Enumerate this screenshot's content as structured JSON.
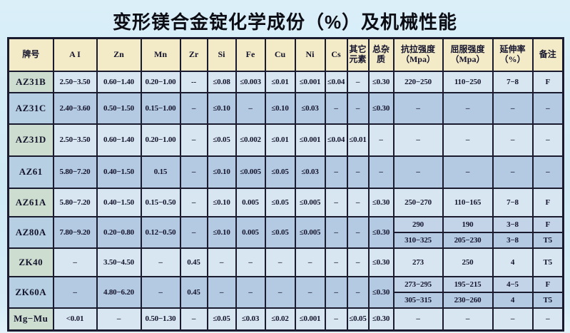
{
  "title": "变形镁合金锭化学成份（%）及机械性能",
  "colors": {
    "page-bg": "#cfe9f5",
    "header-bg": "#f3eac8",
    "row-light": "#d7e6f1",
    "row-dark": "#b4cae2",
    "grade-green": "#cdddcf",
    "grade-blue": "#b7cfe2",
    "subrow-light": "#c3d4e8",
    "border": "#1b1b30",
    "text": "#14142c"
  },
  "table": {
    "headers": [
      "牌号",
      "A I",
      "Zn",
      "Mn",
      "Zr",
      "Si",
      "Fe",
      "Cu",
      "Ni",
      "Cs",
      "其它\n元素",
      "总杂质",
      "抗拉强度\n（Mpa）",
      "屈服强度\n（Mpa）",
      "延伸率\n（%）",
      "备注"
    ],
    "rows": [
      {
        "grade": "AZ31B",
        "cells": [
          "2.50−3.50",
          "0.60−1.40",
          "0.20−1.00",
          "--",
          "≤0.08",
          "≤0.003",
          "≤0.01",
          "≤0.001",
          "≤0.04",
          "–",
          "≤0.30"
        ],
        "mech": [
          [
            "220−250",
            "110−250",
            "7−8",
            "F"
          ]
        ]
      },
      {
        "grade": "AZ31C",
        "cells": [
          "2.40−3.60",
          "0.50−1.50",
          "0.15−1.00",
          "–",
          "≤0.10",
          "–",
          "≤0.10",
          "≤0.03",
          "–",
          "–",
          "≤0.30"
        ],
        "mech": [
          [
            "–",
            "–",
            "–",
            "–"
          ]
        ]
      },
      {
        "grade": "AZ31D",
        "cells": [
          "2.50−3.50",
          "0.60−1.40",
          "0.20−1.00",
          "–",
          "≤0.05",
          "≤0.002",
          "≤0.01",
          "≤0.001",
          "≤0.04",
          "≤0.01",
          "–"
        ],
        "mech": [
          [
            "–",
            "–",
            "–",
            "–"
          ]
        ]
      },
      {
        "grade": "AZ61",
        "cells": [
          "5.80−7.20",
          "0.40−1.50",
          "0.15",
          "–",
          "≤0.10",
          "≤0.005",
          "≤0.05",
          "≤0.03",
          "–",
          "–",
          "–"
        ],
        "mech": [
          [
            "–",
            "–",
            "–",
            "–"
          ]
        ]
      },
      {
        "grade": "AZ61A",
        "cells": [
          "5.80−7.20",
          "0.40−1.50",
          "0.15−0.50",
          "–",
          "≤0.10",
          "0.005",
          "≤0.05",
          "≤0.005",
          "–",
          "–",
          "≤0.30"
        ],
        "mech": [
          [
            "250−270",
            "110−165",
            "7−8",
            "F"
          ]
        ]
      },
      {
        "grade": "AZ80A",
        "cells": [
          "7.80−9.20",
          "0.20−0.80",
          "0.12−0.50",
          "–",
          "≤0.10",
          "0.005",
          "≤0.05",
          "≤0.005",
          "–",
          "–",
          "≤0.30"
        ],
        "mech": [
          [
            "290",
            "190",
            "3−8",
            "F"
          ],
          [
            "310−325",
            "205−230",
            "3−8",
            "T5"
          ]
        ]
      },
      {
        "grade": "ZK40",
        "cells": [
          "–",
          "3.50−4.50",
          "–",
          "0.45",
          "–",
          "–",
          "–",
          "–",
          "–",
          "–",
          "≤0.30"
        ],
        "mech": [
          [
            "273",
            "250",
            "4",
            "T5"
          ]
        ]
      },
      {
        "grade": "ZK60A",
        "cells": [
          "–",
          "4.80−6.20",
          "–",
          "0.45",
          "–",
          "–",
          "–",
          "–",
          "–",
          "–",
          "≤0.30"
        ],
        "mech": [
          [
            "273−295",
            "195−215",
            "4−5",
            "F"
          ],
          [
            "305−315",
            "230−260",
            "4",
            "T5"
          ]
        ]
      },
      {
        "grade": "Mg−Mu",
        "cells": [
          "<0.01",
          "–",
          "0.50−1.30",
          "–",
          "≤0.05",
          "≤0.03",
          "≤0.02",
          "≤0.001",
          "–",
          "≤0.05",
          "≤0.30"
        ],
        "mech": [
          [
            "–",
            "–",
            "–",
            "–"
          ]
        ]
      }
    ]
  }
}
